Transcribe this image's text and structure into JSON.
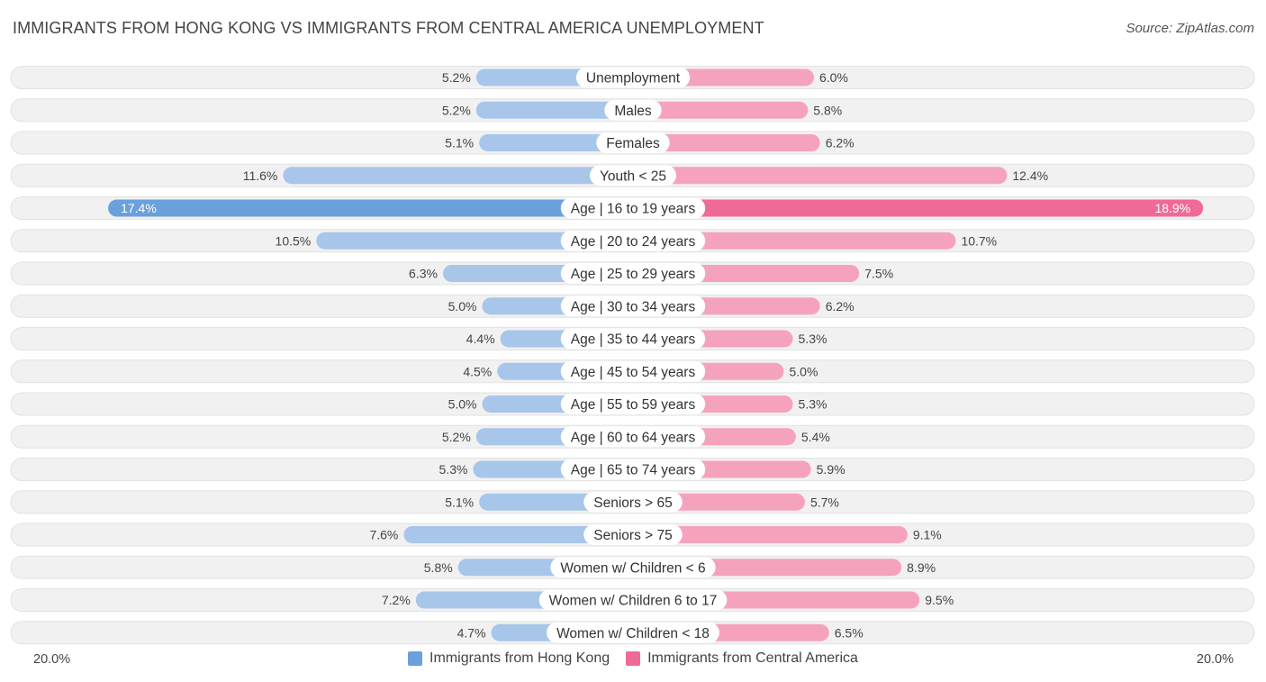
{
  "header": {
    "title": "IMMIGRANTS FROM HONG KONG VS IMMIGRANTS FROM CENTRAL AMERICA UNEMPLOYMENT",
    "source": "Source: ZipAtlas.com"
  },
  "colors": {
    "left_light": "#a8c6ea",
    "left_strong": "#6aa0dc",
    "right_light": "#f5a3bd",
    "right_strong": "#f06a97",
    "row_bg": "#f1f1f1",
    "row_border": "#e2e2e2"
  },
  "axis": {
    "left_label": "20.0%",
    "right_label": "20.0%"
  },
  "legend": [
    {
      "label": "Immigrants from Hong Kong",
      "color": "#6aa0dc"
    },
    {
      "label": "Immigrants from Central America",
      "color": "#f06a97"
    }
  ],
  "chart_data": {
    "type": "bar",
    "orientation": "diverging-horizontal",
    "title": "IMMIGRANTS FROM HONG KONG VS IMMIGRANTS FROM CENTRAL AMERICA UNEMPLOYMENT",
    "xlim": [
      -20,
      20
    ],
    "unit": "%",
    "categories": [
      "Unemployment",
      "Males",
      "Females",
      "Youth < 25",
      "Age | 16 to 19 years",
      "Age | 20 to 24 years",
      "Age | 25 to 29 years",
      "Age | 30 to 34 years",
      "Age | 35 to 44 years",
      "Age | 45 to 54 years",
      "Age | 55 to 59 years",
      "Age | 60 to 64 years",
      "Age | 65 to 74 years",
      "Seniors > 65",
      "Seniors > 75",
      "Women w/ Children < 6",
      "Women w/ Children 6 to 17",
      "Women w/ Children < 18"
    ],
    "series": [
      {
        "name": "Immigrants from Hong Kong",
        "side": "left",
        "values": [
          5.2,
          5.2,
          5.1,
          11.6,
          17.4,
          10.5,
          6.3,
          5.0,
          4.4,
          4.5,
          5.0,
          5.2,
          5.3,
          5.1,
          7.6,
          5.8,
          7.2,
          4.7
        ]
      },
      {
        "name": "Immigrants from Central America",
        "side": "right",
        "values": [
          6.0,
          5.8,
          6.2,
          12.4,
          18.9,
          10.7,
          7.5,
          6.2,
          5.3,
          5.0,
          5.3,
          5.4,
          5.9,
          5.7,
          9.1,
          8.9,
          9.5,
          6.5
        ]
      }
    ],
    "value_labels": {
      "left": [
        "5.2%",
        "5.2%",
        "5.1%",
        "11.6%",
        "17.4%",
        "10.5%",
        "6.3%",
        "5.0%",
        "4.4%",
        "4.5%",
        "5.0%",
        "5.2%",
        "5.3%",
        "5.1%",
        "7.6%",
        "5.8%",
        "7.2%",
        "4.7%"
      ],
      "right": [
        "6.0%",
        "5.8%",
        "6.2%",
        "12.4%",
        "18.9%",
        "10.7%",
        "7.5%",
        "6.2%",
        "5.3%",
        "5.0%",
        "5.3%",
        "5.4%",
        "5.9%",
        "5.7%",
        "9.1%",
        "8.9%",
        "9.5%",
        "6.5%"
      ]
    }
  }
}
